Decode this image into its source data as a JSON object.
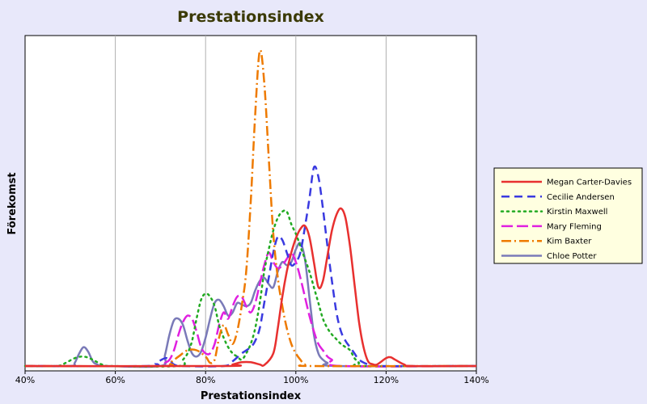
{
  "chart_data": {
    "type": "line",
    "title": "Prestationsindex",
    "xlabel": "Prestationsindex",
    "ylabel": "Förekomst",
    "xlim": [
      40,
      140
    ],
    "ylim": [
      0,
      1
    ],
    "x_ticks": [
      "40%",
      "60%",
      "80%",
      "100%",
      "120%",
      "140%"
    ],
    "grid": "vertical",
    "legend_position": "right",
    "series": [
      {
        "name": "Megan Carter-Davies",
        "color": "#e8302f",
        "dash": "solid",
        "points": [
          [
            40,
            0
          ],
          [
            84,
            0
          ],
          [
            86,
            0.005
          ],
          [
            88,
            0.012
          ],
          [
            90,
            0.012
          ],
          [
            92,
            0.005
          ],
          [
            93,
            0.003
          ],
          [
            95,
            0.04
          ],
          [
            96,
            0.12
          ],
          [
            97,
            0.22
          ],
          [
            98,
            0.3
          ],
          [
            99,
            0.36
          ],
          [
            100,
            0.405
          ],
          [
            101,
            0.435
          ],
          [
            102,
            0.445
          ],
          [
            103,
            0.41
          ],
          [
            104,
            0.33
          ],
          [
            105,
            0.25
          ],
          [
            106,
            0.27
          ],
          [
            107,
            0.35
          ],
          [
            108,
            0.43
          ],
          [
            109,
            0.48
          ],
          [
            110,
            0.5
          ],
          [
            111,
            0.47
          ],
          [
            112,
            0.38
          ],
          [
            113,
            0.26
          ],
          [
            114,
            0.14
          ],
          [
            115,
            0.06
          ],
          [
            116,
            0.015
          ],
          [
            117,
            0.006
          ],
          [
            118,
            0.005
          ],
          [
            120,
            0.025
          ],
          [
            121,
            0.028
          ],
          [
            122,
            0.02
          ],
          [
            124,
            0.005
          ],
          [
            126,
            0
          ],
          [
            140,
            0
          ]
        ]
      },
      {
        "name": "Cecilie Andersen",
        "color": "#3a3ae0",
        "dash": "10,6",
        "points": [
          [
            40,
            0
          ],
          [
            67,
            0
          ],
          [
            69,
            0.01
          ],
          [
            71,
            0.025
          ],
          [
            72,
            0.02
          ],
          [
            73,
            0.005
          ],
          [
            75,
            0
          ],
          [
            84,
            0
          ],
          [
            86,
            0.015
          ],
          [
            88,
            0.04
          ],
          [
            90,
            0.06
          ],
          [
            91,
            0.08
          ],
          [
            92,
            0.12
          ],
          [
            93,
            0.2
          ],
          [
            94,
            0.28
          ],
          [
            95,
            0.36
          ],
          [
            96,
            0.41
          ],
          [
            97,
            0.4
          ],
          [
            98,
            0.36
          ],
          [
            99,
            0.32
          ],
          [
            100,
            0.33
          ],
          [
            101,
            0.36
          ],
          [
            102,
            0.44
          ],
          [
            103,
            0.53
          ],
          [
            104,
            0.63
          ],
          [
            105,
            0.6
          ],
          [
            106,
            0.5
          ],
          [
            107,
            0.38
          ],
          [
            108,
            0.27
          ],
          [
            109,
            0.17
          ],
          [
            110,
            0.11
          ],
          [
            111,
            0.08
          ],
          [
            112,
            0.06
          ],
          [
            113,
            0.04
          ],
          [
            114,
            0.02
          ],
          [
            116,
            0.005
          ],
          [
            118,
            0
          ],
          [
            140,
            0
          ]
        ]
      },
      {
        "name": "Kirstin Maxwell",
        "color": "#22aa22",
        "dash": "2,5",
        "points": [
          [
            40,
            0
          ],
          [
            47,
            0
          ],
          [
            49,
            0.01
          ],
          [
            51,
            0.025
          ],
          [
            53,
            0.03
          ],
          [
            55,
            0.02
          ],
          [
            57,
            0.005
          ],
          [
            59,
            0
          ],
          [
            74,
            0
          ],
          [
            75,
            0.02
          ],
          [
            76,
            0.04
          ],
          [
            77,
            0.08
          ],
          [
            78,
            0.15
          ],
          [
            79,
            0.21
          ],
          [
            80,
            0.23
          ],
          [
            81,
            0.22
          ],
          [
            82,
            0.19
          ],
          [
            83,
            0.13
          ],
          [
            84,
            0.09
          ],
          [
            85,
            0.06
          ],
          [
            86,
            0.04
          ],
          [
            87,
            0.03
          ],
          [
            88,
            0.02
          ],
          [
            89,
            0.04
          ],
          [
            90,
            0.07
          ],
          [
            91,
            0.12
          ],
          [
            92,
            0.2
          ],
          [
            93,
            0.3
          ],
          [
            94,
            0.37
          ],
          [
            95,
            0.43
          ],
          [
            96,
            0.47
          ],
          [
            97,
            0.49
          ],
          [
            98,
            0.49
          ],
          [
            99,
            0.45
          ],
          [
            100,
            0.42
          ],
          [
            101,
            0.38
          ],
          [
            102,
            0.34
          ],
          [
            103,
            0.3
          ],
          [
            104,
            0.25
          ],
          [
            105,
            0.2
          ],
          [
            106,
            0.15
          ],
          [
            107,
            0.12
          ],
          [
            108,
            0.1
          ],
          [
            109,
            0.085
          ],
          [
            110,
            0.07
          ],
          [
            111,
            0.06
          ],
          [
            112,
            0.05
          ],
          [
            113,
            0.025
          ],
          [
            114,
            0.01
          ],
          [
            115,
            0
          ],
          [
            140,
            0
          ]
        ]
      },
      {
        "name": "Mary Fleming",
        "color": "#e020e0",
        "dash": "14,5",
        "points": [
          [
            40,
            0
          ],
          [
            70,
            0
          ],
          [
            71,
            0.01
          ],
          [
            72,
            0.02
          ],
          [
            73,
            0.05
          ],
          [
            74,
            0.1
          ],
          [
            75,
            0.14
          ],
          [
            76,
            0.16
          ],
          [
            77,
            0.15
          ],
          [
            78,
            0.11
          ],
          [
            79,
            0.06
          ],
          [
            80,
            0.04
          ],
          [
            81,
            0.04
          ],
          [
            82,
            0.07
          ],
          [
            83,
            0.13
          ],
          [
            84,
            0.17
          ],
          [
            85,
            0.15
          ],
          [
            86,
            0.19
          ],
          [
            87,
            0.22
          ],
          [
            88,
            0.22
          ],
          [
            89,
            0.19
          ],
          [
            90,
            0.17
          ],
          [
            91,
            0.2
          ],
          [
            92,
            0.26
          ],
          [
            93,
            0.32
          ],
          [
            94,
            0.36
          ],
          [
            95,
            0.33
          ],
          [
            96,
            0.31
          ],
          [
            97,
            0.32
          ],
          [
            98,
            0.34
          ],
          [
            99,
            0.36
          ],
          [
            100,
            0.33
          ],
          [
            101,
            0.28
          ],
          [
            102,
            0.22
          ],
          [
            103,
            0.16
          ],
          [
            104,
            0.11
          ],
          [
            105,
            0.07
          ],
          [
            106,
            0.05
          ],
          [
            107,
            0.03
          ],
          [
            108,
            0.02
          ],
          [
            110,
            0
          ],
          [
            140,
            0
          ]
        ]
      },
      {
        "name": "Kim Baxter",
        "color": "#ee7a00",
        "dash": "12,4,2,4",
        "points": [
          [
            40,
            0
          ],
          [
            70,
            0
          ],
          [
            72,
            0.01
          ],
          [
            74,
            0.03
          ],
          [
            76,
            0.05
          ],
          [
            78,
            0.05
          ],
          [
            80,
            0.03
          ],
          [
            81,
            0.01
          ],
          [
            82,
            0.02
          ],
          [
            83,
            0.09
          ],
          [
            84,
            0.13
          ],
          [
            85,
            0.1
          ],
          [
            86,
            0.07
          ],
          [
            87,
            0.11
          ],
          [
            88,
            0.19
          ],
          [
            89,
            0.3
          ],
          [
            90,
            0.52
          ],
          [
            91,
            0.8
          ],
          [
            92,
            1.0
          ],
          [
            93,
            0.9
          ],
          [
            94,
            0.66
          ],
          [
            95,
            0.42
          ],
          [
            96,
            0.28
          ],
          [
            97,
            0.19
          ],
          [
            98,
            0.12
          ],
          [
            99,
            0.07
          ],
          [
            100,
            0.04
          ],
          [
            101,
            0.02
          ],
          [
            102,
            0.005
          ],
          [
            104,
            0
          ],
          [
            140,
            0
          ]
        ]
      },
      {
        "name": "Chloe Potter",
        "color": "#7a7ab8",
        "dash": "solid",
        "points": [
          [
            40,
            0
          ],
          [
            50,
            0
          ],
          [
            51,
            0.01
          ],
          [
            52,
            0.04
          ],
          [
            53,
            0.06
          ],
          [
            54,
            0.045
          ],
          [
            55,
            0.015
          ],
          [
            56,
            0.005
          ],
          [
            58,
            0
          ],
          [
            70,
            0
          ],
          [
            71,
            0.035
          ],
          [
            72,
            0.1
          ],
          [
            73,
            0.145
          ],
          [
            74,
            0.15
          ],
          [
            75,
            0.13
          ],
          [
            76,
            0.08
          ],
          [
            77,
            0.04
          ],
          [
            78,
            0.03
          ],
          [
            79,
            0.045
          ],
          [
            80,
            0.09
          ],
          [
            81,
            0.15
          ],
          [
            82,
            0.2
          ],
          [
            83,
            0.21
          ],
          [
            84,
            0.19
          ],
          [
            85,
            0.16
          ],
          [
            86,
            0.17
          ],
          [
            87,
            0.2
          ],
          [
            88,
            0.195
          ],
          [
            89,
            0.19
          ],
          [
            90,
            0.2
          ],
          [
            91,
            0.24
          ],
          [
            92,
            0.27
          ],
          [
            93,
            0.28
          ],
          [
            94,
            0.26
          ],
          [
            95,
            0.25
          ],
          [
            96,
            0.3
          ],
          [
            97,
            0.33
          ],
          [
            98,
            0.32
          ],
          [
            99,
            0.33
          ],
          [
            100,
            0.37
          ],
          [
            101,
            0.39
          ],
          [
            102,
            0.34
          ],
          [
            103,
            0.22
          ],
          [
            104,
            0.1
          ],
          [
            105,
            0.04
          ],
          [
            106,
            0.02
          ],
          [
            107,
            0.01
          ],
          [
            109,
            0
          ],
          [
            140,
            0
          ]
        ]
      }
    ]
  }
}
